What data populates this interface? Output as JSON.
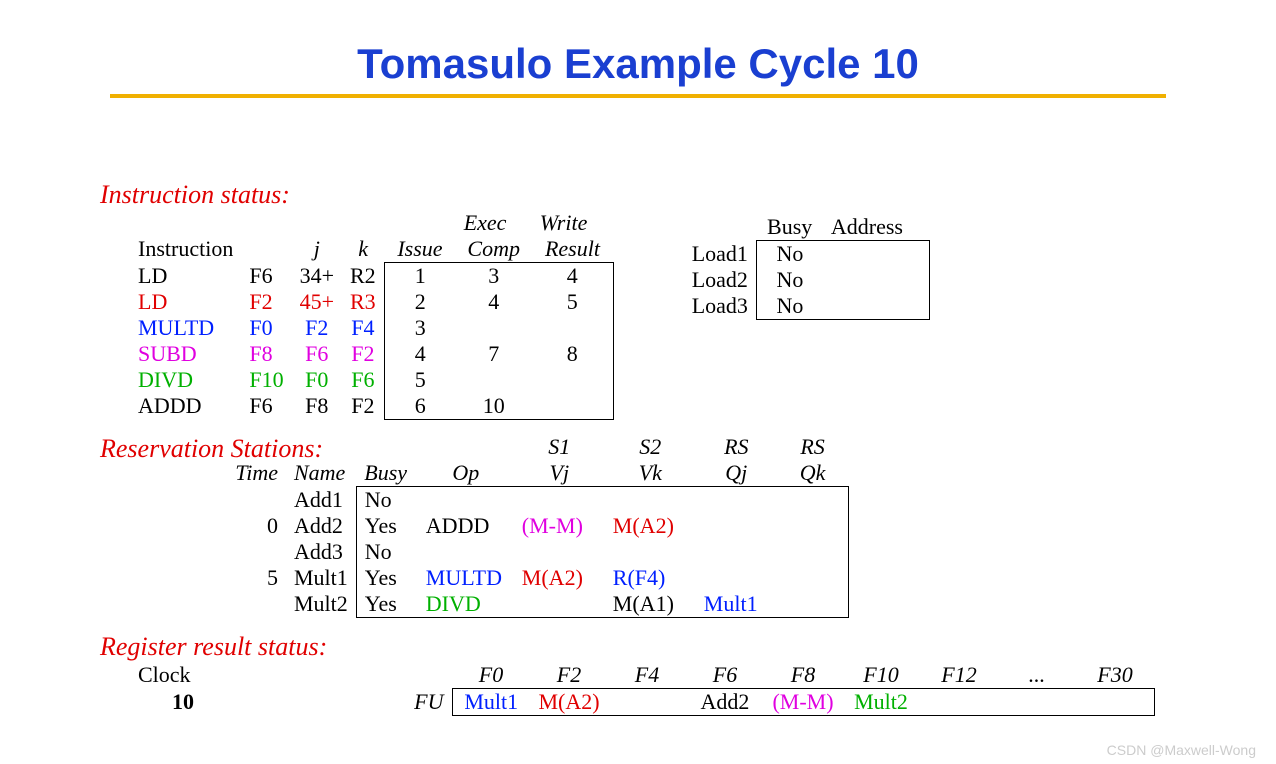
{
  "title": "Tomasulo Example Cycle 10",
  "colors": {
    "title": "#1a3fd1",
    "underline": "#f0b000",
    "section": "#e00000",
    "blue": "#0020ff",
    "red": "#e00000",
    "green": "#00b000",
    "magenta": "#e000e0",
    "black": "#000000",
    "watermark": "#cccccc",
    "background": "#ffffff"
  },
  "typography": {
    "title_fontsize": 42,
    "body_fontsize": 22,
    "section_fontsize": 26,
    "title_font": "Arial",
    "body_font": "Times New Roman"
  },
  "instruction_status": {
    "label": "Instruction status:",
    "col_instruction": "Instruction",
    "col_j": "j",
    "col_k": "k",
    "col_issue": "Issue",
    "col_exec1": "Exec",
    "col_exec2": "Comp",
    "col_write1": "Write",
    "col_write2": "Result",
    "rows": [
      {
        "instr": "LD",
        "dest": "F6",
        "j": "34+",
        "k": "R2",
        "issue": "1",
        "exec": "3",
        "write": "4",
        "color": "black"
      },
      {
        "instr": "LD",
        "dest": "F2",
        "j": "45+",
        "k": "R3",
        "issue": "2",
        "exec": "4",
        "write": "5",
        "color": "red"
      },
      {
        "instr": "MULTD",
        "dest": "F0",
        "j": "F2",
        "k": "F4",
        "issue": "3",
        "exec": "",
        "write": "",
        "color": "blue"
      },
      {
        "instr": "SUBD",
        "dest": "F8",
        "j": "F6",
        "k": "F2",
        "issue": "4",
        "exec": "7",
        "write": "8",
        "color": "magenta"
      },
      {
        "instr": "DIVD",
        "dest": "F10",
        "j": "F0",
        "k": "F6",
        "issue": "5",
        "exec": "",
        "write": "",
        "color": "green"
      },
      {
        "instr": "ADDD",
        "dest": "F6",
        "j": "F8",
        "k": "F2",
        "issue": "6",
        "exec": "10",
        "write": "",
        "color": "black"
      }
    ]
  },
  "load_units": {
    "col_busy": "Busy",
    "col_address": "Address",
    "rows": [
      {
        "name": "Load1",
        "busy": "No",
        "address": ""
      },
      {
        "name": "Load2",
        "busy": "No",
        "address": ""
      },
      {
        "name": "Load3",
        "busy": "No",
        "address": ""
      }
    ]
  },
  "reservation_stations": {
    "label": "Reservation Stations:",
    "hdr_s1": "S1",
    "hdr_s2": "S2",
    "hdr_rs1": "RS",
    "hdr_rs2": "RS",
    "col_time": "Time",
    "col_name": "Name",
    "col_busy": "Busy",
    "col_op": "Op",
    "col_vj": "Vj",
    "col_vk": "Vk",
    "col_qj": "Qj",
    "col_qk": "Qk",
    "rows": [
      {
        "time": "",
        "name": "Add1",
        "busy": "No",
        "op": "",
        "op_color": "black",
        "vj": "",
        "vj_color": "black",
        "vk": "",
        "vk_color": "black",
        "qj": "",
        "qj_color": "black",
        "qk": "",
        "qk_color": "black"
      },
      {
        "time": "0",
        "name": "Add2",
        "busy": "Yes",
        "op": "ADDD",
        "op_color": "black",
        "vj": "(M-M)",
        "vj_color": "magenta",
        "vk": "M(A2)",
        "vk_color": "red",
        "qj": "",
        "qj_color": "black",
        "qk": "",
        "qk_color": "black"
      },
      {
        "time": "",
        "name": "Add3",
        "busy": "No",
        "op": "",
        "op_color": "black",
        "vj": "",
        "vj_color": "black",
        "vk": "",
        "vk_color": "black",
        "qj": "",
        "qj_color": "black",
        "qk": "",
        "qk_color": "black"
      },
      {
        "time": "5",
        "name": "Mult1",
        "busy": "Yes",
        "op": "MULTD",
        "op_color": "blue",
        "vj": "M(A2)",
        "vj_color": "red",
        "vk": "R(F4)",
        "vk_color": "blue",
        "qj": "",
        "qj_color": "black",
        "qk": "",
        "qk_color": "black"
      },
      {
        "time": "",
        "name": "Mult2",
        "busy": "Yes",
        "op": "DIVD",
        "op_color": "green",
        "vj": "",
        "vj_color": "black",
        "vk": "M(A1)",
        "vk_color": "black",
        "qj": "Mult1",
        "qj_color": "blue",
        "qk": "",
        "qk_color": "black"
      }
    ]
  },
  "register_status": {
    "label": "Register result status:",
    "clock_label": "Clock",
    "clock_value": "10",
    "fu_label": "FU",
    "regs": [
      "F0",
      "F2",
      "F4",
      "F6",
      "F8",
      "F10",
      "F12",
      "...",
      "F30"
    ],
    "values": [
      {
        "text": "Mult1",
        "color": "blue"
      },
      {
        "text": "M(A2)",
        "color": "red"
      },
      {
        "text": "",
        "color": "black"
      },
      {
        "text": "Add2",
        "color": "black"
      },
      {
        "text": "(M-M)",
        "color": "magenta"
      },
      {
        "text": "Mult2",
        "color": "green"
      },
      {
        "text": "",
        "color": "black"
      },
      {
        "text": "",
        "color": "black"
      },
      {
        "text": "",
        "color": "black"
      }
    ]
  },
  "watermark": "CSDN @Maxwell-Wong"
}
